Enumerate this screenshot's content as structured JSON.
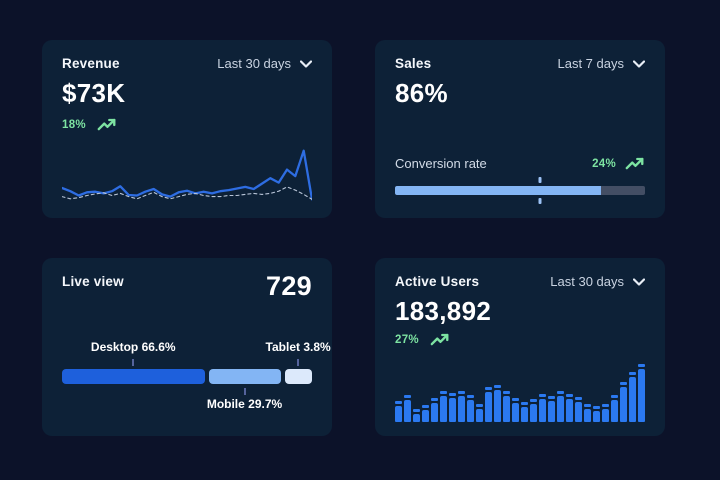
{
  "theme": {
    "page_bg": "#0c1229",
    "card_bg": "#0d2137",
    "bar_blue": "#2b79f0",
    "line_blue": "#2e6de2",
    "dashed_gray": "#b9c5d8",
    "desktop_blue": "#1e60dc",
    "mobile_blue": "#83b5f4",
    "tablet_blue": "#dce9fb",
    "track_gray": "#434e64",
    "green": "#7de3a2"
  },
  "cards": {
    "revenue": {
      "title": "Revenue",
      "range": "Last 30 days",
      "value": "$73K",
      "delta": "18%"
    },
    "sales": {
      "title": "Sales",
      "range": "Last 7 days",
      "value": "86%",
      "delta": "24%",
      "metric_label": "Conversion rate"
    },
    "live_view": {
      "title": "Live view",
      "value": "729",
      "desktop_label": "Desktop 66.6%",
      "mobile_label": "Mobile 29.7%",
      "tablet_label": "Tablet 3.8%"
    },
    "active_users": {
      "title": "Active Users",
      "range": "Last 30 days",
      "value": "183,892",
      "delta": "27%"
    }
  },
  "chart_data": [
    {
      "id": "revenue_trend",
      "type": "line",
      "title": "Revenue - Last 30 days",
      "ylim": [
        0,
        100
      ],
      "grid": false,
      "legend": "none",
      "series": [
        {
          "name": "current",
          "style": "solid",
          "color": "#2e6de2",
          "values": [
            26,
            20,
            12,
            18,
            19,
            16,
            20,
            29,
            13,
            12,
            19,
            24,
            14,
            10,
            18,
            21,
            16,
            19,
            16,
            20,
            22,
            25,
            28,
            24,
            34,
            44,
            36,
            60,
            48,
            95,
            5
          ]
        },
        {
          "name": "previous",
          "style": "dashed",
          "color": "#b9c5d8",
          "values": [
            10,
            6,
            8,
            12,
            15,
            17,
            12,
            16,
            10,
            6,
            12,
            18,
            10,
            6,
            10,
            14,
            16,
            12,
            10,
            10,
            12,
            12,
            14,
            16,
            14,
            16,
            20,
            28,
            22,
            14,
            5
          ]
        }
      ]
    },
    {
      "id": "conversion_progress",
      "type": "progress",
      "value_pct": 86,
      "fill_pct": 82.5,
      "marker_pct": 58
    },
    {
      "id": "device_split",
      "type": "stacked-bar",
      "segments": [
        {
          "name": "Desktop",
          "pct": 66.6,
          "width_pct": 57.0,
          "color": "#1e60dc"
        },
        {
          "name": "Mobile",
          "pct": 29.7,
          "width_pct": 28.8,
          "color": "#83b5f4"
        },
        {
          "name": "Tablet",
          "pct": 3.8,
          "width_pct": 10.9,
          "color": "#dce9fb"
        }
      ],
      "gap_pct": 1.6
    },
    {
      "id": "active_users_bars",
      "type": "bar",
      "color": "#2b79f0",
      "values": [
        37,
        46,
        23,
        29,
        41,
        54,
        50,
        54,
        46,
        31,
        60,
        64,
        54,
        41,
        35,
        40,
        49,
        45,
        53,
        49,
        43,
        31,
        27,
        31,
        46,
        69,
        86,
        100
      ]
    }
  ]
}
